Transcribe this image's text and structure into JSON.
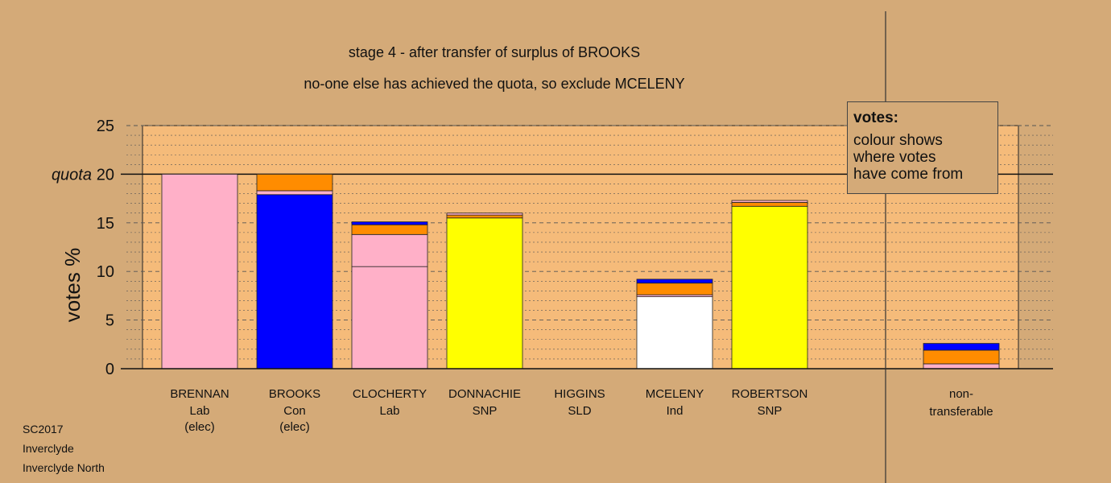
{
  "chart_data": {
    "type": "bar",
    "stacked": true,
    "title": "stage 4 - after transfer of surplus of BROOKS",
    "subtitle": "no-one else has achieved the quota, so exclude MCELENY",
    "ylabel": "votes %",
    "ylim": [
      0,
      25
    ],
    "yticks": [
      "0",
      "5",
      "10",
      "15",
      "20",
      "25"
    ],
    "quota": {
      "label": "quota",
      "value": 20
    },
    "grid": true,
    "candidates": [
      {
        "name": "BRENNAN",
        "party": "Lab",
        "note": "(elec)",
        "segments": [
          {
            "value": 20.0,
            "color": "#ffb0c8"
          }
        ]
      },
      {
        "name": "BROOKS",
        "party": "Con",
        "note": "(elec)",
        "segments": [
          {
            "value": 17.9,
            "color": "#0000ff"
          },
          {
            "value": 0.4,
            "color": "#ffb0c8"
          },
          {
            "value": 1.7,
            "color": "#ff8c00"
          }
        ]
      },
      {
        "name": "CLOCHERTY",
        "party": "Lab",
        "note": "",
        "segments": [
          {
            "value": 10.5,
            "color": "#ffb0c8"
          },
          {
            "value": 3.3,
            "color": "#ffb0c8"
          },
          {
            "value": 1.0,
            "color": "#ff8c00"
          },
          {
            "value": 0.3,
            "color": "#0000ff"
          }
        ]
      },
      {
        "name": "DONNACHIE",
        "party": "SNP",
        "note": "",
        "segments": [
          {
            "value": 15.5,
            "color": "#ffff00"
          },
          {
            "value": 0.3,
            "color": "#ff8c00"
          },
          {
            "value": 0.2,
            "color": "#ffb0c8"
          }
        ]
      },
      {
        "name": "HIGGINS",
        "party": "SLD",
        "note": "",
        "segments": []
      },
      {
        "name": "MCELENY",
        "party": "Ind",
        "note": "",
        "segments": [
          {
            "value": 7.4,
            "color": "#ffffff"
          },
          {
            "value": 0.2,
            "color": "#ffb0c8"
          },
          {
            "value": 1.2,
            "color": "#ff8c00"
          },
          {
            "value": 0.4,
            "color": "#0000ff"
          }
        ]
      },
      {
        "name": "ROBERTSON",
        "party": "SNP",
        "note": "",
        "segments": [
          {
            "value": 16.7,
            "color": "#ffff00"
          },
          {
            "value": 0.4,
            "color": "#ff8c00"
          },
          {
            "value": 0.2,
            "color": "#ffb0c8"
          }
        ]
      }
    ],
    "nontransferable": {
      "label_line1": "non-",
      "label_line2": "transferable",
      "segments": [
        {
          "value": 0.5,
          "color": "#ffb0c8"
        },
        {
          "value": 1.4,
          "color": "#ff8c00"
        },
        {
          "value": 0.7,
          "color": "#0000ff"
        }
      ]
    }
  },
  "legend": {
    "title": "votes:",
    "line1": "colour shows",
    "line2": "where votes",
    "line3": "have come from"
  },
  "footer": {
    "line1": "SC2017",
    "line2": "Inverclyde",
    "line3": "Inverclyde North"
  },
  "colors": {
    "background": "#d4aa78",
    "plot_area": "#f5bb7a"
  }
}
